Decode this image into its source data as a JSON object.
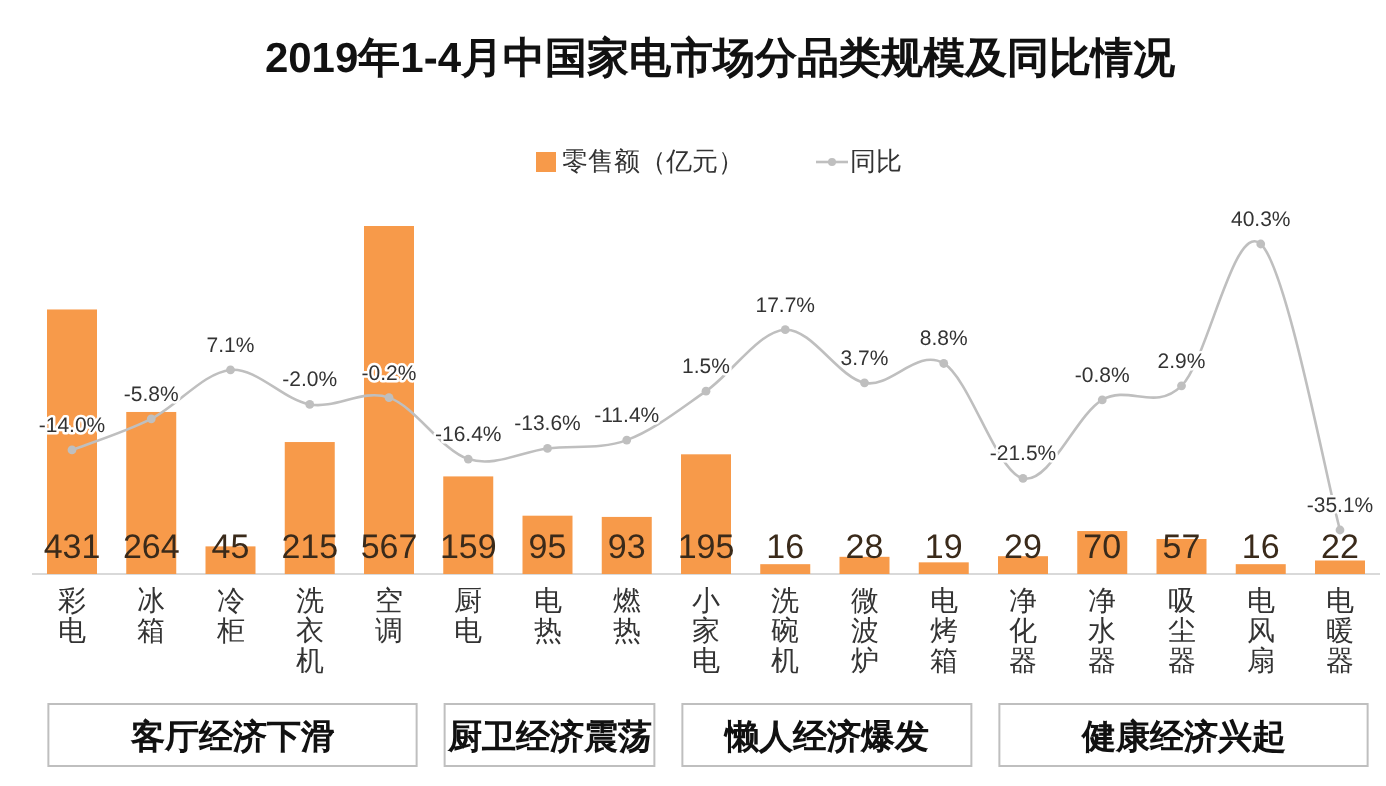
{
  "chart_data": {
    "type": "bar",
    "title": "2019年1-4月中国家电市场分品类规模及同比情况",
    "categories": [
      "彩电",
      "冰箱",
      "冷柜",
      "洗衣机",
      "空调",
      "厨电",
      "电热",
      "燃热",
      "小家电",
      "洗碗机",
      "微波炉",
      "电烤箱",
      "净化器",
      "净水器",
      "吸尘器",
      "电风扇",
      "电暖器"
    ],
    "series": [
      {
        "name": "零售额（亿元）",
        "color": "#f79a4a",
        "values": [
          431,
          264,
          45,
          215,
          567,
          159,
          95,
          93,
          195,
          16,
          28,
          19,
          29,
          70,
          57,
          16,
          22
        ]
      },
      {
        "name": "同比",
        "type": "line",
        "axis": "y2",
        "color": "#bfbfbf",
        "marker": "circle",
        "values": [
          -14.0,
          -5.8,
          7.1,
          -2.0,
          -0.2,
          -16.4,
          -13.6,
          -11.4,
          1.5,
          17.7,
          3.7,
          8.8,
          -21.5,
          -0.8,
          2.9,
          40.3,
          -35.1
        ],
        "value_labels": [
          "-14.0%",
          "-5.8%",
          "7.1%",
          "-2.0%",
          "-0.2%",
          "-16.4%",
          "-13.6%",
          "-11.4%",
          "1.5%",
          "17.7%",
          "3.7%",
          "8.8%",
          "-21.5%",
          "-0.8%",
          "2.9%",
          "40.3%",
          "-35.1%"
        ]
      }
    ],
    "data_labels": true,
    "legend": "top",
    "grid": false,
    "annotations": [
      "客厅经济下滑",
      "厨卫经济震荡",
      "懒人经济爆发",
      "健康经济兴起"
    ]
  }
}
